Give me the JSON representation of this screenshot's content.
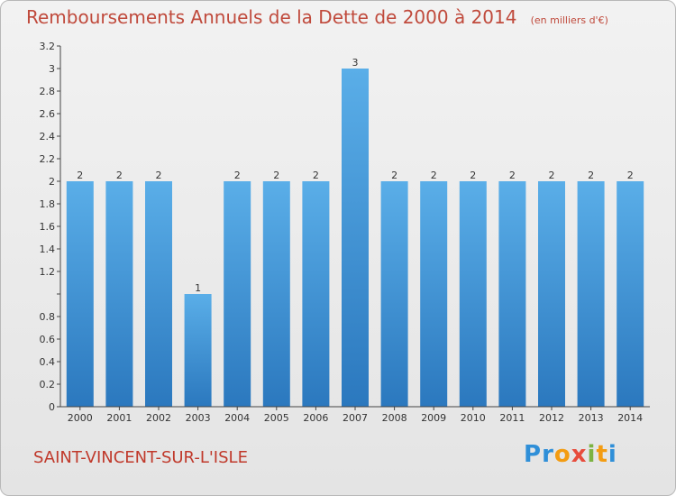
{
  "header": {
    "title": "Remboursements Annuels de la Dette de 2000 à 2014",
    "unit": "(en milliers d'€)"
  },
  "footer": {
    "commune": "SAINT-VINCENT-SUR-L'ISLE",
    "logo_letters": [
      "P",
      "r",
      "o",
      "x",
      "i",
      "t",
      "i"
    ],
    "logo_colors": [
      "#2f8fd8",
      "#2f8fd8",
      "#f39c12",
      "#e74c3c",
      "#7cb342",
      "#f39c12",
      "#2f8fd8"
    ]
  },
  "chart_data": {
    "type": "bar",
    "title": "Remboursements Annuels de la Dette de 2000 à 2014",
    "subtitle": "(en milliers d'€)",
    "categories": [
      "2000",
      "2001",
      "2002",
      "2003",
      "2004",
      "2005",
      "2006",
      "2007",
      "2008",
      "2009",
      "2010",
      "2011",
      "2012",
      "2013",
      "2014"
    ],
    "values": [
      2,
      2,
      2,
      1,
      2,
      2,
      2,
      3,
      2,
      2,
      2,
      2,
      2,
      2,
      2
    ],
    "data_labels": [
      "2",
      "2",
      "2",
      "1",
      "2",
      "2",
      "2",
      "3",
      "2",
      "2",
      "2",
      "2",
      "2",
      "2",
      "2"
    ],
    "ylim": [
      0,
      3.2
    ],
    "yticks": [
      0,
      0.2,
      0.4,
      0.6,
      0.8,
      1,
      1.2,
      1.4,
      1.6,
      1.8,
      2,
      2.2,
      2.4,
      2.6,
      2.8,
      3,
      3.2
    ],
    "ytick_labels": [
      "0",
      "0.2",
      "0.4",
      "0.6",
      "0.8",
      "",
      "1.2",
      "1.4",
      "1.6",
      "1.8",
      "2",
      "2.2",
      "2.4",
      "2.6",
      "2.8",
      "3",
      "3.2"
    ],
    "grid": false,
    "colors": {
      "bar": "#3d8fd6",
      "bar_light": "#5aaee8",
      "label": "#c04a3c"
    }
  }
}
